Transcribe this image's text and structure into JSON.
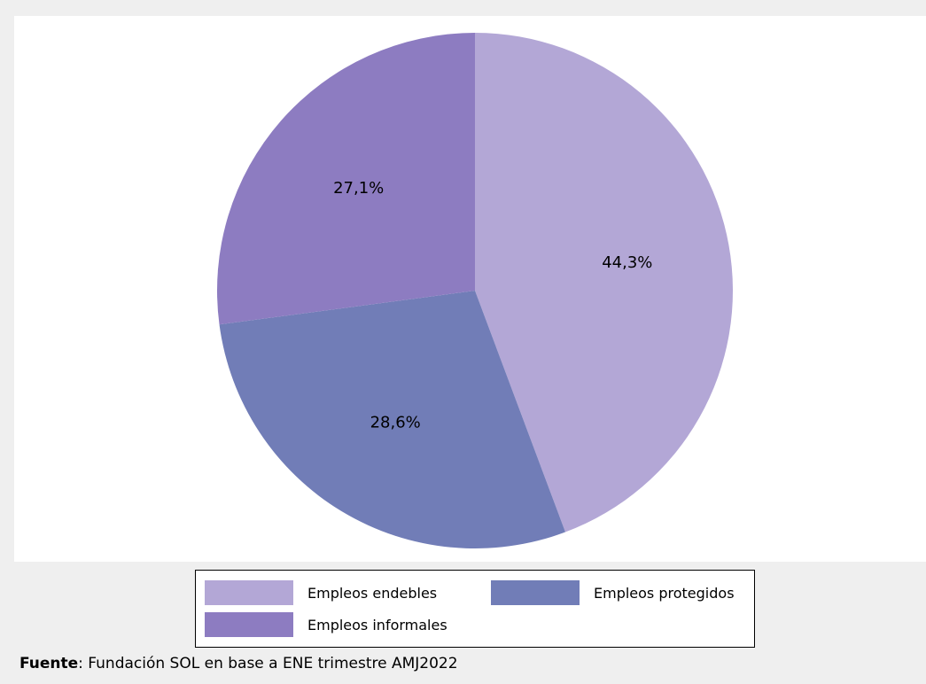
{
  "chart_data": {
    "type": "pie",
    "categories": [
      "Empleos endebles",
      "Empleos protegidos",
      "Empleos informales"
    ],
    "values": [
      44.3,
      28.6,
      27.1
    ],
    "labels": [
      "44,3%",
      "28,6%",
      "27,1%"
    ],
    "colors": [
      "#b3a7d6",
      "#717db7",
      "#8d7cc1"
    ],
    "start": "12 o'clock",
    "direction": "clockwise",
    "legend": "bottom"
  },
  "source": {
    "prefix": "Fuente",
    "text": ": Fundación SOL en base a ENE trimestre AMJ2022"
  }
}
